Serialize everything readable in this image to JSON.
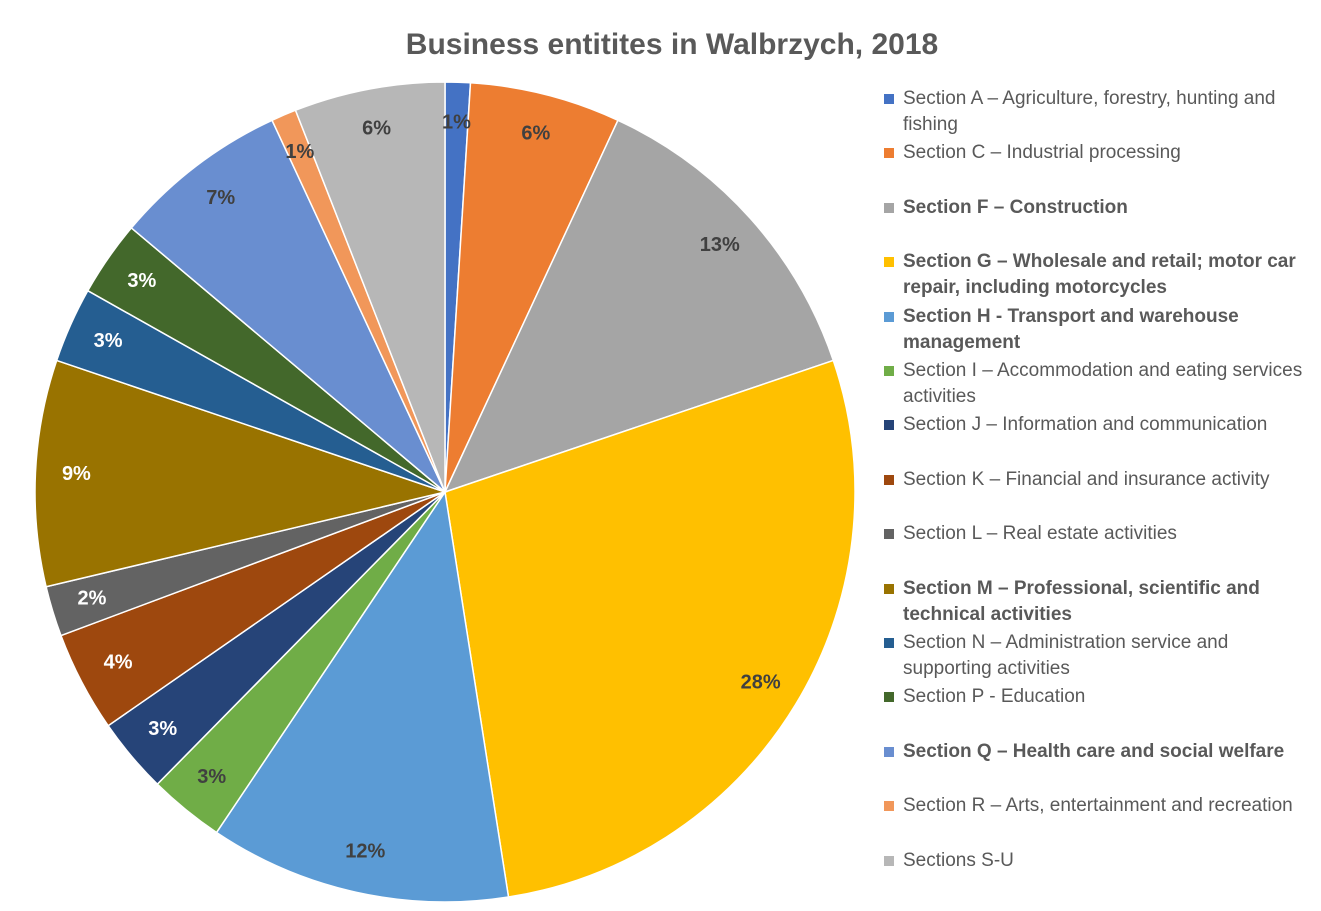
{
  "chart_data": {
    "type": "pie",
    "title": "Business entitites in Walbrzych, 2018",
    "categories": [
      "Section A – Agriculture, forestry, hunting and fishing",
      "Section C – Industrial processing",
      "Section F – Construction",
      "Section G – Wholesale and retail; motor car repair, including motorcycles",
      "Section H - Transport and warehouse management",
      "Section I – Accommodation and eating services activities",
      "Section J – Information and communication",
      "Section K – Financial and insurance activity",
      "Section L – Real estate activities",
      "Section M – Professional, scientific and technical activities",
      "Section N – Administration service and supporting activities",
      "Section P - Education",
      "Section Q – Health care and social welfare",
      "Section R – Arts, entertainment and recreation",
      "Sections S-U"
    ],
    "values": [
      1,
      6,
      13,
      28,
      12,
      3,
      3,
      4,
      2,
      9,
      3,
      3,
      7,
      1,
      6
    ],
    "value_labels": [
      "1%",
      "6%",
      "13%",
      "28%",
      "12%",
      "3%",
      "3%",
      "4%",
      "2%",
      "9%",
      "3%",
      "3%",
      "7%",
      "1%",
      "6%"
    ],
    "colors": [
      "#4472c4",
      "#ed7d31",
      "#a5a5a5",
      "#ffc000",
      "#5b9bd5",
      "#70ad47",
      "#264478",
      "#9e480e",
      "#636363",
      "#997300",
      "#255e91",
      "#43682b",
      "#698ed0",
      "#f1975a",
      "#b7b7b7"
    ],
    "legend_bold": [
      false,
      false,
      true,
      true,
      true,
      false,
      false,
      false,
      false,
      true,
      false,
      false,
      true,
      false,
      false
    ],
    "legend": "right"
  }
}
